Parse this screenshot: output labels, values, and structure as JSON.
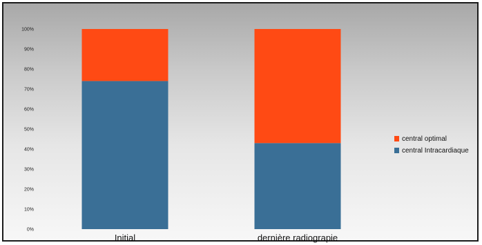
{
  "chart_data": {
    "type": "bar",
    "stacked": true,
    "categories": [
      "Initial",
      "dernière radiograpie"
    ],
    "series": [
      {
        "name": "central Intracardiaque",
        "values": [
          74,
          43
        ],
        "color": "#3a6f96"
      },
      {
        "name": "central optimal",
        "values": [
          26,
          57
        ],
        "color": "#ff4a14"
      }
    ],
    "ylim": [
      0,
      100
    ],
    "yticks": [
      "0%",
      "10%",
      "20%",
      "30%",
      "40%",
      "50%",
      "60%",
      "70%",
      "80%",
      "90%",
      "100%"
    ],
    "legend_order": [
      "central optimal",
      "central Intracardiaque"
    ],
    "legend_position": "right",
    "grid": false
  }
}
